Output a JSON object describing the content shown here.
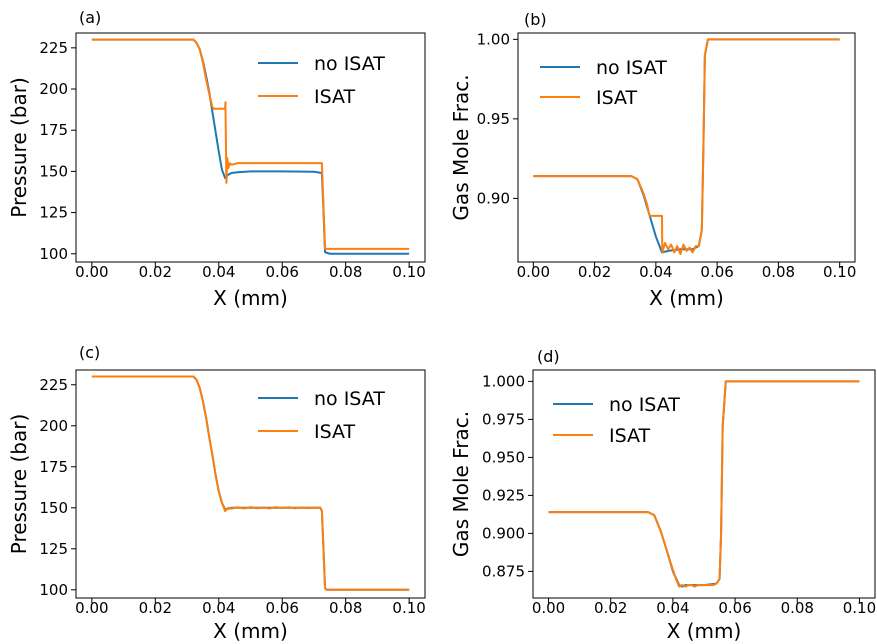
{
  "figure": {
    "colors": {
      "no_isat": "#1f77b4",
      "isat": "#ff7f0e",
      "axis": "#000000",
      "background": "#ffffff"
    }
  },
  "chart_data": [
    {
      "type": "line",
      "panel_label": "(a)",
      "xlabel": "X (mm)",
      "ylabel": "Pressure (bar)",
      "xlim": [
        -0.005,
        0.105
      ],
      "ylim": [
        95,
        234
      ],
      "xticks": [
        0.0,
        0.02,
        0.04,
        0.06,
        0.08,
        0.1
      ],
      "xtick_labels": [
        "0.00",
        "0.02",
        "0.04",
        "0.06",
        "0.08",
        "0.10"
      ],
      "yticks": [
        100,
        125,
        150,
        175,
        200,
        225
      ],
      "ytick_labels": [
        "100",
        "125",
        "150",
        "175",
        "200",
        "225"
      ],
      "grid": false,
      "legend_position": "top-right",
      "series": [
        {
          "name": "no ISAT",
          "color": "#1f77b4",
          "x": [
            0,
            0.032,
            0.033,
            0.034,
            0.035,
            0.036,
            0.037,
            0.038,
            0.039,
            0.04,
            0.041,
            0.042,
            0.043,
            0.044,
            0.046,
            0.05,
            0.06,
            0.07,
            0.0725,
            0.073,
            0.0735,
            0.075,
            0.08,
            0.09,
            0.1
          ],
          "y": [
            230,
            230,
            228,
            224,
            217,
            208,
            198,
            186,
            174,
            162,
            151,
            146,
            148,
            149,
            149.5,
            150,
            150,
            149.8,
            149,
            126,
            101,
            100,
            100,
            100,
            100
          ]
        },
        {
          "name": "ISAT",
          "color": "#ff7f0e",
          "x": [
            0,
            0.032,
            0.033,
            0.034,
            0.035,
            0.036,
            0.037,
            0.038,
            0.0385,
            0.039,
            0.04,
            0.041,
            0.042,
            0.0421,
            0.0424,
            0.0427,
            0.043,
            0.0435,
            0.044,
            0.046,
            0.05,
            0.06,
            0.07,
            0.0725,
            0.073,
            0.0735,
            0.075,
            0.08,
            0.09,
            0.1
          ],
          "y": [
            230,
            230,
            228,
            224,
            216,
            206,
            197,
            189,
            188,
            188,
            188,
            188,
            188,
            192,
            143,
            158,
            152,
            155,
            154,
            155,
            155,
            155,
            155,
            155,
            129,
            103,
            103,
            103,
            103,
            103
          ]
        }
      ]
    },
    {
      "type": "line",
      "panel_label": "(b)",
      "xlabel": "X (mm)",
      "ylabel": "Gas Mole Frac.",
      "xlim": [
        -0.005,
        0.105
      ],
      "ylim": [
        0.86,
        1.004
      ],
      "xticks": [
        0.0,
        0.02,
        0.04,
        0.06,
        0.08,
        0.1
      ],
      "xtick_labels": [
        "0.00",
        "0.02",
        "0.04",
        "0.06",
        "0.08",
        "0.10"
      ],
      "yticks": [
        0.9,
        0.95,
        1.0
      ],
      "ytick_labels": [
        "0.90",
        "0.95",
        "1.00"
      ],
      "grid": false,
      "legend_position": "top-left",
      "series": [
        {
          "name": "no ISAT",
          "color": "#1f77b4",
          "x": [
            0,
            0.032,
            0.034,
            0.036,
            0.038,
            0.04,
            0.042,
            0.044,
            0.048,
            0.052,
            0.054,
            0.055,
            0.0555,
            0.056,
            0.057,
            0.06,
            0.08,
            0.1
          ],
          "y": [
            0.914,
            0.914,
            0.912,
            0.902,
            0.889,
            0.876,
            0.866,
            0.867,
            0.868,
            0.868,
            0.87,
            0.88,
            0.93,
            0.99,
            1.0,
            1.0,
            1.0,
            1.0
          ]
        },
        {
          "name": "ISAT",
          "color": "#ff7f0e",
          "x": [
            0,
            0.032,
            0.034,
            0.036,
            0.037,
            0.038,
            0.039,
            0.04,
            0.041,
            0.042,
            0.0421,
            0.043,
            0.044,
            0.045,
            0.046,
            0.047,
            0.048,
            0.049,
            0.05,
            0.051,
            0.052,
            0.053,
            0.054,
            0.055,
            0.0555,
            0.056,
            0.057,
            0.06,
            0.08,
            0.1
          ],
          "y": [
            0.914,
            0.914,
            0.912,
            0.903,
            0.897,
            0.889,
            0.889,
            0.889,
            0.889,
            0.889,
            0.866,
            0.872,
            0.868,
            0.871,
            0.866,
            0.87,
            0.865,
            0.871,
            0.867,
            0.869,
            0.866,
            0.87,
            0.87,
            0.88,
            0.93,
            0.99,
            1.0,
            1.0,
            1.0,
            1.0
          ]
        }
      ]
    },
    {
      "type": "line",
      "panel_label": "(c)",
      "xlabel": "X (mm)",
      "ylabel": "Pressure (bar)",
      "xlim": [
        -0.005,
        0.105
      ],
      "ylim": [
        95,
        234
      ],
      "xticks": [
        0.0,
        0.02,
        0.04,
        0.06,
        0.08,
        0.1
      ],
      "xtick_labels": [
        "0.00",
        "0.02",
        "0.04",
        "0.06",
        "0.08",
        "0.10"
      ],
      "yticks": [
        100,
        125,
        150,
        175,
        200,
        225
      ],
      "ytick_labels": [
        "100",
        "125",
        "150",
        "175",
        "200",
        "225"
      ],
      "grid": false,
      "legend_position": "top-right",
      "series": [
        {
          "name": "no ISAT",
          "color": "#1f77b4",
          "x": [
            0,
            0.032,
            0.033,
            0.034,
            0.035,
            0.036,
            0.037,
            0.038,
            0.039,
            0.04,
            0.041,
            0.042,
            0.043,
            0.044,
            0.05,
            0.06,
            0.07,
            0.072,
            0.0725,
            0.073,
            0.0735,
            0.074,
            0.08,
            0.09,
            0.1
          ],
          "y": [
            230,
            230,
            228,
            223,
            215,
            205,
            193,
            182,
            170,
            160,
            153,
            149,
            149.5,
            150,
            150,
            150,
            150,
            150,
            148,
            125,
            101,
            100,
            100,
            100,
            100
          ]
        },
        {
          "name": "ISAT",
          "color": "#ff7f0e",
          "x": [
            0,
            0.032,
            0.033,
            0.034,
            0.035,
            0.036,
            0.037,
            0.038,
            0.039,
            0.04,
            0.041,
            0.042,
            0.043,
            0.044,
            0.046,
            0.048,
            0.05,
            0.052,
            0.054,
            0.056,
            0.058,
            0.06,
            0.062,
            0.064,
            0.066,
            0.068,
            0.07,
            0.072,
            0.0725,
            0.073,
            0.0735,
            0.074,
            0.08,
            0.09,
            0.1
          ],
          "y": [
            230,
            230,
            228,
            223,
            215,
            205,
            193,
            182,
            170,
            160,
            153,
            148,
            150,
            149.5,
            150.3,
            149.6,
            150.4,
            149.7,
            150.2,
            149.6,
            150.4,
            149.8,
            150.3,
            149.7,
            150.2,
            149.8,
            150.1,
            150,
            148,
            125,
            101,
            100,
            100,
            100,
            100
          ]
        }
      ]
    },
    {
      "type": "line",
      "panel_label": "(d)",
      "xlabel": "X (mm)",
      "ylabel": "Gas Mole Frac.",
      "xlim": [
        -0.005,
        0.105
      ],
      "ylim": [
        0.8575,
        1.0075
      ],
      "xticks": [
        0.0,
        0.02,
        0.04,
        0.06,
        0.08,
        0.1
      ],
      "xtick_labels": [
        "0.00",
        "0.02",
        "0.04",
        "0.06",
        "0.08",
        "0.10"
      ],
      "yticks": [
        0.875,
        0.9,
        0.925,
        0.95,
        0.975,
        1.0
      ],
      "ytick_labels": [
        "0.875",
        "0.900",
        "0.925",
        "0.950",
        "0.975",
        "1.000"
      ],
      "grid": false,
      "legend_position": "top-left",
      "series": [
        {
          "name": "no ISAT",
          "color": "#1f77b4",
          "x": [
            0,
            0.032,
            0.034,
            0.036,
            0.038,
            0.04,
            0.042,
            0.043,
            0.044,
            0.046,
            0.05,
            0.054,
            0.055,
            0.0555,
            0.056,
            0.057,
            0.06,
            0.08,
            0.1
          ],
          "y": [
            0.914,
            0.914,
            0.912,
            0.902,
            0.889,
            0.875,
            0.866,
            0.865,
            0.866,
            0.866,
            0.866,
            0.867,
            0.87,
            0.9,
            0.97,
            1.0,
            1.0,
            1.0,
            1.0
          ]
        },
        {
          "name": "ISAT",
          "color": "#ff7f0e",
          "x": [
            0,
            0.032,
            0.034,
            0.036,
            0.038,
            0.04,
            0.041,
            0.042,
            0.043,
            0.044,
            0.045,
            0.046,
            0.047,
            0.048,
            0.049,
            0.05,
            0.051,
            0.052,
            0.053,
            0.054,
            0.055,
            0.0555,
            0.056,
            0.057,
            0.06,
            0.08,
            0.1
          ],
          "y": [
            0.914,
            0.914,
            0.912,
            0.902,
            0.889,
            0.876,
            0.87,
            0.865,
            0.866,
            0.865,
            0.866,
            0.866,
            0.865,
            0.866,
            0.866,
            0.866,
            0.866,
            0.866,
            0.866,
            0.867,
            0.87,
            0.9,
            0.97,
            1.0,
            1.0,
            1.0,
            1.0
          ]
        }
      ]
    }
  ]
}
